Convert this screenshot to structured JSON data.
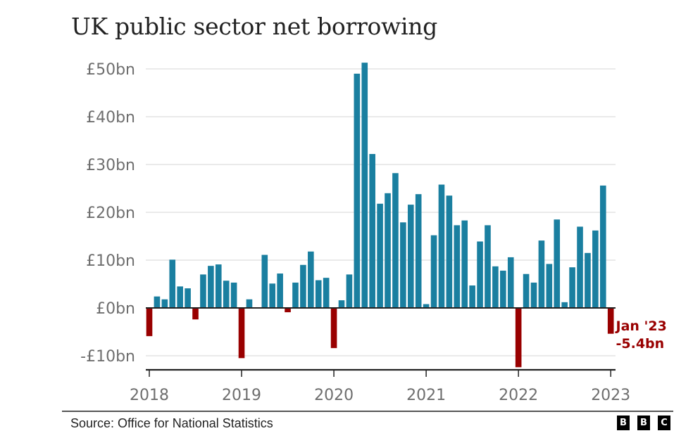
{
  "chart_data": {
    "type": "bar",
    "title": "UK public sector net borrowing",
    "xlabel": "",
    "ylabel": "",
    "ylim": [
      -10,
      50
    ],
    "yticks": [
      -10,
      0,
      10,
      20,
      30,
      40,
      50
    ],
    "ytick_labels": [
      "-£10bn",
      "£0bn",
      "£10bn",
      "£20bn",
      "£30bn",
      "£40bn",
      "£50bn"
    ],
    "xtick_labels": [
      "2018",
      "2019",
      "2020",
      "2021",
      "2022",
      "2023"
    ],
    "grid": true,
    "unit": "£bn",
    "colors": {
      "positive": "#1a7fa0",
      "negative": "#990000",
      "grid": "#dddddd",
      "axis": "#222222"
    },
    "categories": [
      "Jan 2018",
      "Feb 2018",
      "Mar 2018",
      "Apr 2018",
      "May 2018",
      "Jun 2018",
      "Jul 2018",
      "Aug 2018",
      "Sep 2018",
      "Oct 2018",
      "Nov 2018",
      "Dec 2018",
      "Jan 2019",
      "Feb 2019",
      "Mar 2019",
      "Apr 2019",
      "May 2019",
      "Jun 2019",
      "Jul 2019",
      "Aug 2019",
      "Sep 2019",
      "Oct 2019",
      "Nov 2019",
      "Dec 2019",
      "Jan 2020",
      "Feb 2020",
      "Mar 2020",
      "Apr 2020",
      "May 2020",
      "Jun 2020",
      "Jul 2020",
      "Aug 2020",
      "Sep 2020",
      "Oct 2020",
      "Nov 2020",
      "Dec 2020",
      "Jan 2021",
      "Feb 2021",
      "Mar 2021",
      "Apr 2021",
      "May 2021",
      "Jun 2021",
      "Jul 2021",
      "Aug 2021",
      "Sep 2021",
      "Oct 2021",
      "Nov 2021",
      "Dec 2021",
      "Jan 2022",
      "Feb 2022",
      "Mar 2022",
      "Apr 2022",
      "May 2022",
      "Jun 2022",
      "Jul 2022",
      "Aug 2022",
      "Sep 2022",
      "Oct 2022",
      "Nov 2022",
      "Dec 2022",
      "Jan 2023"
    ],
    "values": [
      -5.9,
      2.4,
      1.8,
      10.1,
      4.5,
      4.1,
      -2.4,
      7.0,
      8.8,
      9.1,
      5.7,
      5.3,
      -10.5,
      1.8,
      0.0,
      11.1,
      5.1,
      7.2,
      -0.9,
      5.3,
      9.0,
      11.8,
      5.8,
      6.3,
      -8.4,
      1.6,
      7.0,
      49.0,
      51.3,
      32.2,
      21.8,
      24.0,
      28.2,
      17.9,
      21.6,
      23.8,
      0.8,
      15.2,
      25.8,
      23.5,
      17.3,
      18.3,
      4.7,
      13.9,
      17.3,
      8.7,
      7.8,
      10.6,
      -12.4,
      7.1,
      5.3,
      14.1,
      9.2,
      18.5,
      1.2,
      8.5,
      17.0,
      11.5,
      16.2,
      25.6,
      -5.4
    ],
    "annotation": {
      "line1": "Jan '23",
      "line2": "-5.4bn",
      "target_category": "Jan 2023"
    }
  },
  "footer": {
    "source": "Source: Office for National Statistics",
    "logo_letters": [
      "B",
      "B",
      "C"
    ]
  }
}
